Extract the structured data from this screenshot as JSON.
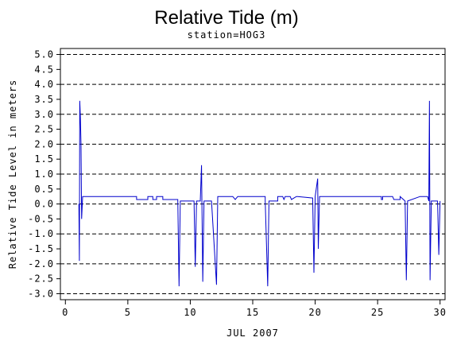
{
  "chart_data": {
    "type": "line",
    "title": "Relative Tide (m)",
    "subtitle": "station=HOG3",
    "y_label": "Relative Tide Level in meters",
    "x_label": "JUL 2007",
    "color": "#0000cc",
    "grid": true,
    "xlim": [
      -0.4,
      30.4
    ],
    "ylim": [
      -3.2,
      5.2
    ],
    "xticks": [
      0,
      5,
      10,
      15,
      20,
      25,
      30
    ],
    "yticks": [
      {
        "value": 5,
        "label": "5.0"
      },
      4.5,
      {
        "value": 4,
        "label": "4.0"
      },
      3.5,
      {
        "value": 3,
        "label": "3.0"
      },
      2.5,
      {
        "value": 2,
        "label": "2.0"
      },
      1.5,
      {
        "value": 1,
        "label": "1.0"
      },
      0.5,
      {
        "value": 0,
        "label": "0.0"
      },
      -0.5,
      {
        "value": -1,
        "label": "-1.0"
      },
      -1.5,
      {
        "value": -2,
        "label": "-2.0"
      },
      -2.5,
      {
        "value": -3,
        "label": "-3.0"
      }
    ],
    "x": [
      1.08,
      1.12,
      1.15,
      1.2,
      1.25,
      1.3,
      1.38,
      5.7,
      5.7,
      6.6,
      6.6,
      7.0,
      7.0,
      7.3,
      7.3,
      7.8,
      7.8,
      8.4,
      9.0,
      9.1,
      9.2,
      10.1,
      10.3,
      10.4,
      10.5,
      10.8,
      10.9,
      11.0,
      11.1,
      11.7,
      12.1,
      12.2,
      13.4,
      13.6,
      13.8,
      16.0,
      16.0,
      16.2,
      16.3,
      17.0,
      17.0,
      17.4,
      17.5,
      17.6,
      18.0,
      18.1,
      18.5,
      18.6,
      19.8,
      19.9,
      20.0,
      20.2,
      20.25,
      20.35,
      25.3,
      25.3,
      25.4,
      25.4,
      26.2,
      26.3,
      26.8,
      26.8,
      27.2,
      27.3,
      27.4,
      28.4,
      29.0,
      29.1,
      29.15,
      29.2,
      29.25,
      29.3,
      29.8,
      29.9,
      30.0
    ],
    "values": [
      0.0,
      -1.9,
      3.45,
      2.9,
      2.0,
      -0.5,
      0.25,
      0.25,
      0.15,
      0.15,
      0.25,
      0.25,
      0.15,
      0.15,
      0.25,
      0.25,
      0.15,
      0.15,
      0.15,
      -2.75,
      0.1,
      0.1,
      0.1,
      -2.1,
      0.1,
      0.1,
      1.3,
      -2.6,
      0.1,
      0.1,
      -2.7,
      0.25,
      0.25,
      0.15,
      0.25,
      0.25,
      0.1,
      -2.75,
      0.1,
      0.1,
      0.25,
      0.25,
      0.15,
      0.25,
      0.25,
      0.15,
      0.25,
      0.25,
      0.2,
      -2.3,
      0.25,
      0.85,
      -1.5,
      0.25,
      0.25,
      0.15,
      0.15,
      0.25,
      0.25,
      0.15,
      0.15,
      0.25,
      0.1,
      -2.55,
      0.1,
      0.25,
      0.25,
      0.1,
      3.45,
      -2.55,
      -1.2,
      0.1,
      0.1,
      -1.7,
      0.1
    ]
  }
}
